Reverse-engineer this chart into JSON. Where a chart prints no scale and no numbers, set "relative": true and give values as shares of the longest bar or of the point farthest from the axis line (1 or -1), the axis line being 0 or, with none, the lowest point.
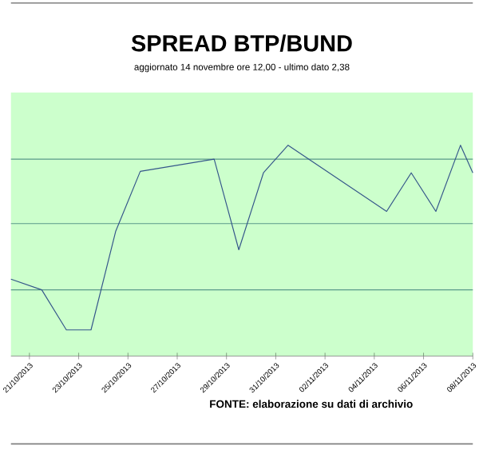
{
  "chart_data": {
    "type": "line",
    "title": "SPREAD BTP/BUND",
    "subtitle": "aggiornato 14 novembre ore 12,00 - ultimo dato 2,38",
    "annotations": [
      "FONTE: elaborazione su dati di archivio"
    ],
    "relative": true,
    "x": [
      "2013-10-20T06:00",
      "2013-10-21T12:00",
      "2013-10-22T12:00",
      "2013-10-23T12:00",
      "2013-10-24T12:00",
      "2013-10-25T12:00",
      "2013-10-28T12:00",
      "2013-10-29T12:00",
      "2013-10-30T12:00",
      "2013-10-31T12:00",
      "2013-11-04T12:00",
      "2013-11-05T12:00",
      "2013-11-06T12:00",
      "2013-11-07T12:00",
      "2013-11-08T00:00"
    ],
    "series": [
      {
        "color": "#34558a",
        "values": [
          0.365,
          0.314,
          0.124,
          0.124,
          0.591,
          0.876,
          0.934,
          0.504,
          0.869,
          1.0,
          0.686,
          0.869,
          0.686,
          1.0,
          0.869
        ]
      }
    ],
    "xlim": [
      "2013-10-20T06:00",
      "2013-11-08T00:00"
    ],
    "xticks": [
      {
        "value": "2013-10-21",
        "label": "21/10/2013"
      },
      {
        "value": "2013-10-23",
        "label": "23/10/2013"
      },
      {
        "value": "2013-10-25",
        "label": "25/10/2013"
      },
      {
        "value": "2013-10-27",
        "label": "27/10/2013"
      },
      {
        "value": "2013-10-29",
        "label": "29/10/2013"
      },
      {
        "value": "2013-10-31",
        "label": "31/10/2013"
      },
      {
        "value": "2013-11-02",
        "label": "02/11/2013"
      },
      {
        "value": "2013-11-04",
        "label": "04/11/2013"
      },
      {
        "value": "2013-11-06",
        "label": "06/11/2013"
      },
      {
        "value": "2013-11-08",
        "label": "08/11/2013"
      }
    ],
    "ref_lines": [
      {
        "axis": "y",
        "value": 0.314,
        "color": "#5a9a8a"
      },
      {
        "axis": "y",
        "value": 0.628,
        "color": "#5a9a8a"
      },
      {
        "axis": "y",
        "value": 0.934,
        "color": "#5a9a8a"
      }
    ],
    "marker": "none",
    "line_style": "solid"
  }
}
